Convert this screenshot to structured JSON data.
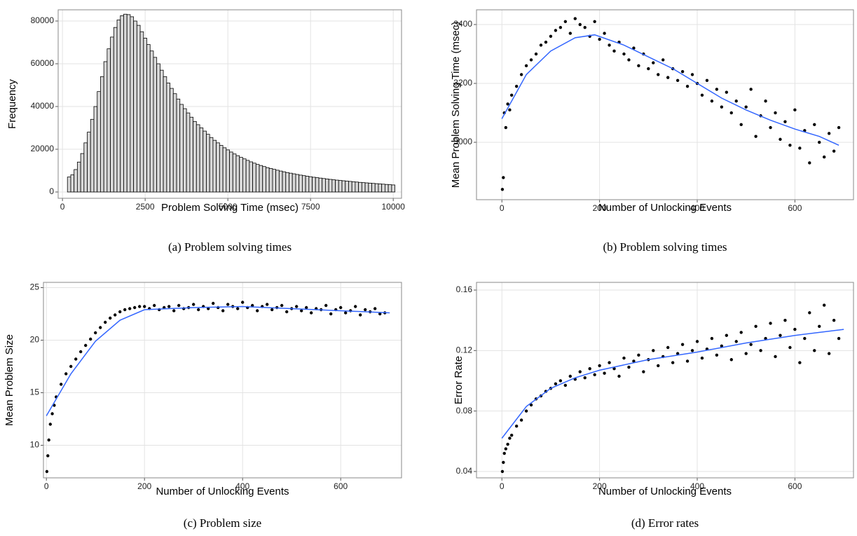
{
  "chart_data": [
    {
      "type": "histogram",
      "caption": "(a) Problem solving times",
      "x_label": "Problem Solving Time (msec)",
      "y_label": "Frequency",
      "bins": [
        150,
        250,
        350,
        450,
        550,
        650,
        750,
        850,
        950,
        1050,
        1150,
        1250,
        1350,
        1450,
        1550,
        1650,
        1750,
        1850,
        1950,
        2050,
        2150,
        2250,
        2350,
        2450,
        2550,
        2650,
        2750,
        2850,
        2950,
        3050,
        3150,
        3250,
        3350,
        3450,
        3550,
        3650,
        3750,
        3850,
        3950,
        4050,
        4150,
        4250,
        4350,
        4450,
        4550,
        4650,
        4750,
        4850,
        4950,
        5050,
        5150,
        5250,
        5350,
        5450,
        5550,
        5650,
        5750,
        5850,
        5950,
        6050,
        6150,
        6250,
        6350,
        6450,
        6550,
        6650,
        6750,
        6850,
        6950,
        7050,
        7150,
        7250,
        7350,
        7450,
        7550,
        7650,
        7750,
        7850,
        7950,
        8050,
        8150,
        8250,
        8350,
        8450,
        8550,
        8650,
        8750,
        8850,
        8950,
        9050,
        9150,
        9250,
        9350,
        9450,
        9550,
        9650,
        9750,
        9850,
        9950,
        10050
      ],
      "counts": [
        7000,
        8000,
        10500,
        14000,
        18000,
        23000,
        28000,
        34000,
        40000,
        47000,
        54000,
        61000,
        67000,
        72500,
        77000,
        80500,
        82500,
        83200,
        83000,
        82000,
        80000,
        78000,
        75000,
        72000,
        69000,
        66000,
        63000,
        60000,
        57000,
        54000,
        51000,
        48500,
        46000,
        43500,
        41000,
        39000,
        37000,
        35000,
        33000,
        31500,
        30000,
        28500,
        27000,
        25500,
        24200,
        23000,
        21800,
        20700,
        19700,
        18700,
        17800,
        17000,
        16200,
        15500,
        14800,
        14100,
        13500,
        12900,
        12400,
        11900,
        11400,
        11000,
        10600,
        10200,
        9800,
        9450,
        9100,
        8800,
        8500,
        8200,
        7900,
        7650,
        7400,
        7150,
        6900,
        6700,
        6500,
        6300,
        6100,
        5900,
        5700,
        5550,
        5400,
        5250,
        5100,
        4950,
        4800,
        4650,
        4500,
        4380,
        4260,
        4140,
        4020,
        3900,
        3780,
        3660,
        3540,
        3420,
        3300
      ],
      "color": "#d9d9d9",
      "xlim": [
        -130,
        10250
      ],
      "ylim": [
        -2950,
        85250
      ],
      "xticks": [
        0,
        2500,
        5000,
        7500,
        10000
      ],
      "yticks": [
        0,
        20000,
        40000,
        60000,
        80000
      ],
      "grid": true
    },
    {
      "type": "scatter",
      "caption": "(b) Problem solving times",
      "x_label": "Number of Unlocking Events",
      "y_label": "Mean Problem Solving Time (msec)",
      "x": [
        1,
        3,
        5,
        8,
        12,
        16,
        20,
        30,
        40,
        50,
        60,
        70,
        80,
        90,
        100,
        110,
        120,
        130,
        140,
        150,
        160,
        170,
        180,
        190,
        200,
        210,
        220,
        230,
        240,
        250,
        260,
        270,
        280,
        290,
        300,
        310,
        320,
        330,
        340,
        350,
        360,
        370,
        380,
        390,
        400,
        410,
        420,
        430,
        440,
        450,
        460,
        470,
        480,
        490,
        500,
        510,
        520,
        530,
        540,
        550,
        560,
        570,
        580,
        590,
        600,
        610,
        620,
        630,
        640,
        650,
        660,
        670,
        680,
        690
      ],
      "values": [
        2840,
        2880,
        3100,
        3050,
        3130,
        3110,
        3160,
        3190,
        3230,
        3260,
        3280,
        3300,
        3330,
        3340,
        3360,
        3380,
        3390,
        3410,
        3370,
        3420,
        3400,
        3390,
        3360,
        3410,
        3350,
        3370,
        3330,
        3310,
        3340,
        3300,
        3280,
        3320,
        3260,
        3300,
        3250,
        3270,
        3230,
        3280,
        3220,
        3250,
        3210,
        3240,
        3190,
        3230,
        3200,
        3160,
        3210,
        3140,
        3180,
        3120,
        3170,
        3100,
        3140,
        3060,
        3120,
        3180,
        3020,
        3090,
        3140,
        3050,
        3100,
        3010,
        3070,
        2990,
        3110,
        2980,
        3040,
        2930,
        3060,
        3000,
        2950,
        3030,
        2970,
        3050
      ],
      "color": "#000000",
      "fit": {
        "x": [
          0,
          50,
          100,
          150,
          190,
          250,
          300,
          350,
          400,
          450,
          500,
          550,
          600,
          650,
          690
        ],
        "values": [
          3080,
          3230,
          3310,
          3355,
          3365,
          3330,
          3290,
          3250,
          3200,
          3150,
          3110,
          3075,
          3045,
          3020,
          2990
        ],
        "color": "#3366ff"
      },
      "xlim": [
        -52,
        720
      ],
      "ylim": [
        2805,
        3450
      ],
      "xticks": [
        0,
        200,
        400,
        600
      ],
      "yticks": [
        3000,
        3200,
        3400
      ],
      "grid": true
    },
    {
      "type": "scatter",
      "caption": "(c) Problem size",
      "x_label": "Number of Unlocking Events",
      "y_label": "Mean Problem Size",
      "x": [
        1,
        3,
        5,
        8,
        12,
        16,
        20,
        30,
        40,
        50,
        60,
        70,
        80,
        90,
        100,
        110,
        120,
        130,
        140,
        150,
        160,
        170,
        180,
        190,
        200,
        210,
        220,
        230,
        240,
        250,
        260,
        270,
        280,
        290,
        300,
        310,
        320,
        330,
        340,
        350,
        360,
        370,
        380,
        390,
        400,
        410,
        420,
        430,
        440,
        450,
        460,
        470,
        480,
        490,
        500,
        510,
        520,
        530,
        540,
        550,
        560,
        570,
        580,
        590,
        600,
        610,
        620,
        630,
        640,
        650,
        660,
        670,
        680,
        690
      ],
      "values": [
        7.5,
        9.0,
        10.5,
        12.0,
        13.0,
        13.8,
        14.6,
        15.8,
        16.8,
        17.5,
        18.2,
        18.9,
        19.5,
        20.1,
        20.7,
        21.2,
        21.7,
        22.1,
        22.4,
        22.7,
        22.9,
        23.0,
        23.1,
        23.2,
        23.2,
        23.0,
        23.3,
        22.9,
        23.1,
        23.2,
        22.8,
        23.3,
        23.0,
        23.1,
        23.4,
        22.9,
        23.2,
        23.0,
        23.5,
        23.1,
        22.8,
        23.4,
        23.2,
        23.0,
        23.6,
        23.1,
        23.3,
        22.8,
        23.2,
        23.4,
        22.9,
        23.1,
        23.3,
        22.7,
        23.0,
        23.2,
        22.8,
        23.1,
        22.6,
        23.0,
        22.9,
        23.3,
        22.5,
        22.9,
        23.1,
        22.6,
        22.8,
        23.2,
        22.4,
        22.9,
        22.7,
        23.0,
        22.5,
        22.6
      ],
      "color": "#000000",
      "fit": {
        "x": [
          0,
          50,
          100,
          150,
          200,
          300,
          400,
          500,
          600,
          700
        ],
        "values": [
          12.8,
          16.8,
          19.9,
          21.9,
          22.9,
          23.1,
          23.2,
          23.0,
          22.8,
          22.6
        ],
        "color": "#3366ff"
      },
      "xlim": [
        -6,
        724
      ],
      "ylim": [
        6.9,
        25.5
      ],
      "xticks": [
        0,
        200,
        400,
        600
      ],
      "yticks": [
        10,
        15,
        20,
        25
      ],
      "grid": true
    },
    {
      "type": "scatter",
      "caption": "(d) Error rates",
      "x_label": "Number of Unlocking Events",
      "y_label": "Error Rate",
      "x": [
        1,
        3,
        5,
        8,
        12,
        16,
        20,
        30,
        40,
        50,
        60,
        70,
        80,
        90,
        100,
        110,
        120,
        130,
        140,
        150,
        160,
        170,
        180,
        190,
        200,
        210,
        220,
        230,
        240,
        250,
        260,
        270,
        280,
        290,
        300,
        310,
        320,
        330,
        340,
        350,
        360,
        370,
        380,
        390,
        400,
        410,
        420,
        430,
        440,
        450,
        460,
        470,
        480,
        490,
        500,
        510,
        520,
        530,
        540,
        550,
        560,
        570,
        580,
        590,
        600,
        610,
        620,
        630,
        640,
        650,
        660,
        670,
        680,
        690
      ],
      "values": [
        0.04,
        0.046,
        0.052,
        0.055,
        0.058,
        0.062,
        0.064,
        0.07,
        0.074,
        0.08,
        0.084,
        0.088,
        0.09,
        0.093,
        0.095,
        0.098,
        0.1,
        0.097,
        0.103,
        0.101,
        0.106,
        0.102,
        0.108,
        0.104,
        0.11,
        0.105,
        0.112,
        0.108,
        0.103,
        0.115,
        0.109,
        0.113,
        0.117,
        0.106,
        0.114,
        0.12,
        0.11,
        0.116,
        0.122,
        0.112,
        0.118,
        0.124,
        0.113,
        0.12,
        0.126,
        0.115,
        0.121,
        0.128,
        0.117,
        0.123,
        0.13,
        0.114,
        0.126,
        0.132,
        0.118,
        0.124,
        0.136,
        0.12,
        0.128,
        0.138,
        0.116,
        0.13,
        0.14,
        0.122,
        0.134,
        0.112,
        0.128,
        0.145,
        0.12,
        0.136,
        0.15,
        0.118,
        0.14,
        0.128
      ],
      "color": "#000000",
      "fit": {
        "x": [
          0,
          50,
          100,
          150,
          200,
          300,
          400,
          500,
          600,
          700
        ],
        "values": [
          0.062,
          0.083,
          0.095,
          0.102,
          0.107,
          0.114,
          0.119,
          0.125,
          0.13,
          0.134
        ],
        "color": "#3366ff"
      },
      "xlim": [
        -52,
        720
      ],
      "ylim": [
        0.0358,
        0.1651
      ],
      "xticks": [
        0,
        200,
        400,
        600
      ],
      "yticks": [
        0.04,
        0.08,
        0.12,
        0.16
      ],
      "grid": true
    }
  ]
}
